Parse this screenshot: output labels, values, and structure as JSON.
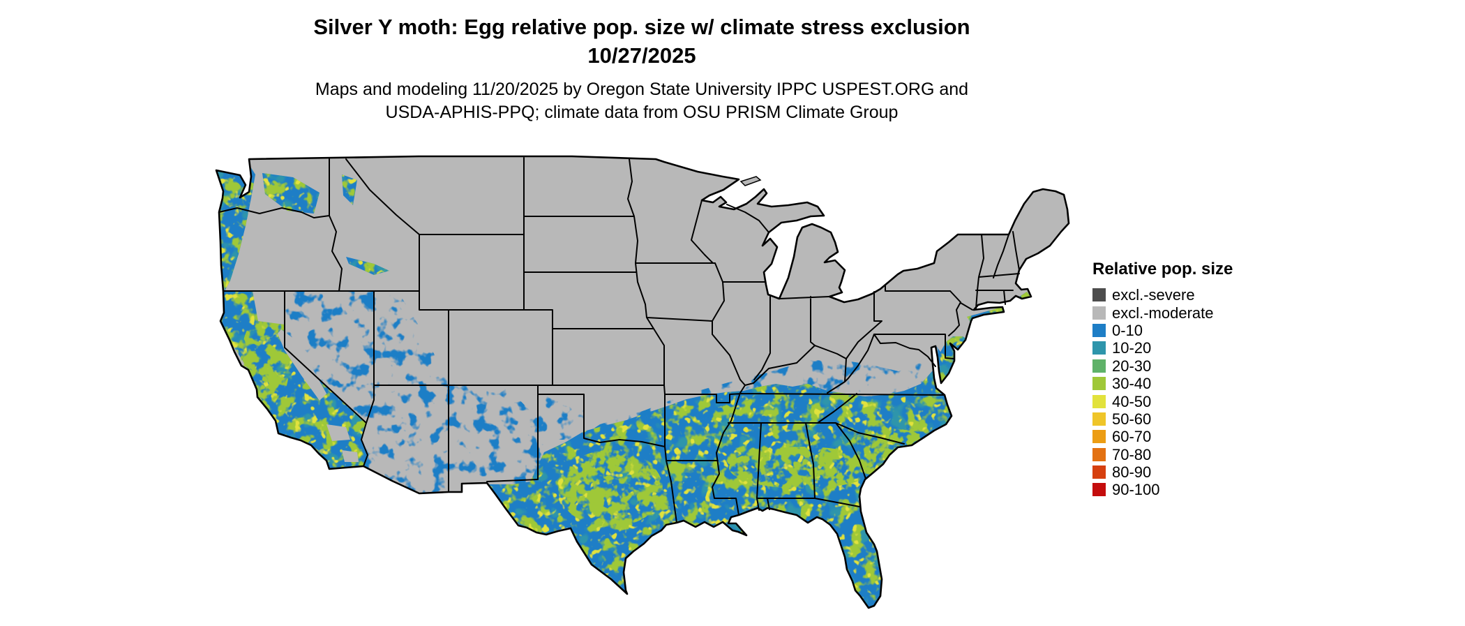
{
  "header": {
    "title_line1": "Silver Y moth: Egg relative pop. size w/ climate stress exclusion",
    "title_line2": "10/27/2025",
    "subtitle_line1": "Maps and modeling 11/20/2025 by Oregon State University IPPC USPEST.ORG and",
    "subtitle_line2": "USDA-APHIS-PPQ; climate data from OSU PRISM Climate Group"
  },
  "legend": {
    "title": "Relative pop. size",
    "items": [
      {
        "label": "excl.-severe",
        "color": "#4d4d4d"
      },
      {
        "label": "excl.-moderate",
        "color": "#b8b8b8"
      },
      {
        "label": "0-10",
        "color": "#1e7ec6"
      },
      {
        "label": "10-20",
        "color": "#2e95ab"
      },
      {
        "label": "20-30",
        "color": "#5fb269"
      },
      {
        "label": "30-40",
        "color": "#9fc838"
      },
      {
        "label": "40-50",
        "color": "#e2e23c"
      },
      {
        "label": "50-60",
        "color": "#efc529"
      },
      {
        "label": "60-70",
        "color": "#ec9d14"
      },
      {
        "label": "70-80",
        "color": "#e37112"
      },
      {
        "label": "80-90",
        "color": "#d6400f"
      },
      {
        "label": "90-100",
        "color": "#c40d0d"
      }
    ]
  },
  "map": {
    "region_label": "Continental United States",
    "land_excluded_moderate_color": "#b8b8b8",
    "land_excluded_severe_color": "#4d4d4d",
    "suitable_fill": "#1e7ec6",
    "mottle_green": "#9fc838",
    "mottle_yellow": "#e2e23c",
    "mottle_teal": "#2e95ab",
    "border_color": "#000000",
    "water_color": "#ffffff"
  }
}
